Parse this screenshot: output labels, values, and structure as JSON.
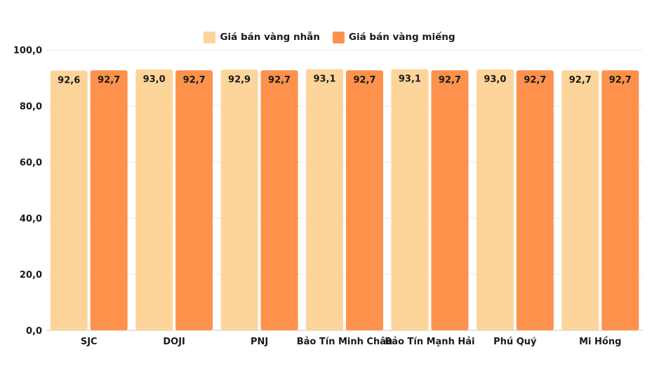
{
  "chart_data": {
    "type": "bar",
    "categories": [
      "SJC",
      "DOJI",
      "PNJ",
      "Bảo Tín Minh Châu",
      "Bảo Tín Mạnh Hải",
      "Phú Quý",
      "Mi Hồng"
    ],
    "series": [
      {
        "name": "Giá bán vàng nhẫn",
        "color": "#fdd59a",
        "values": [
          92.6,
          93.0,
          92.9,
          93.1,
          93.1,
          93.0,
          92.7
        ],
        "labels": [
          "92,6",
          "93,0",
          "92,9",
          "93,1",
          "93,1",
          "93,0",
          "92,7"
        ]
      },
      {
        "name": "Giá bán vàng miếng",
        "color": "#fe914c",
        "values": [
          92.7,
          92.7,
          92.7,
          92.7,
          92.7,
          92.7,
          92.7
        ],
        "labels": [
          "92,7",
          "92,7",
          "92,7",
          "92,7",
          "92,7",
          "92,7",
          "92,7"
        ]
      }
    ],
    "yticks": [
      "0,0",
      "20,0",
      "40,0",
      "60,0",
      "80,0",
      "100,0"
    ],
    "ylim": [
      0,
      100
    ],
    "grid": true,
    "legend_position": "top-center"
  }
}
